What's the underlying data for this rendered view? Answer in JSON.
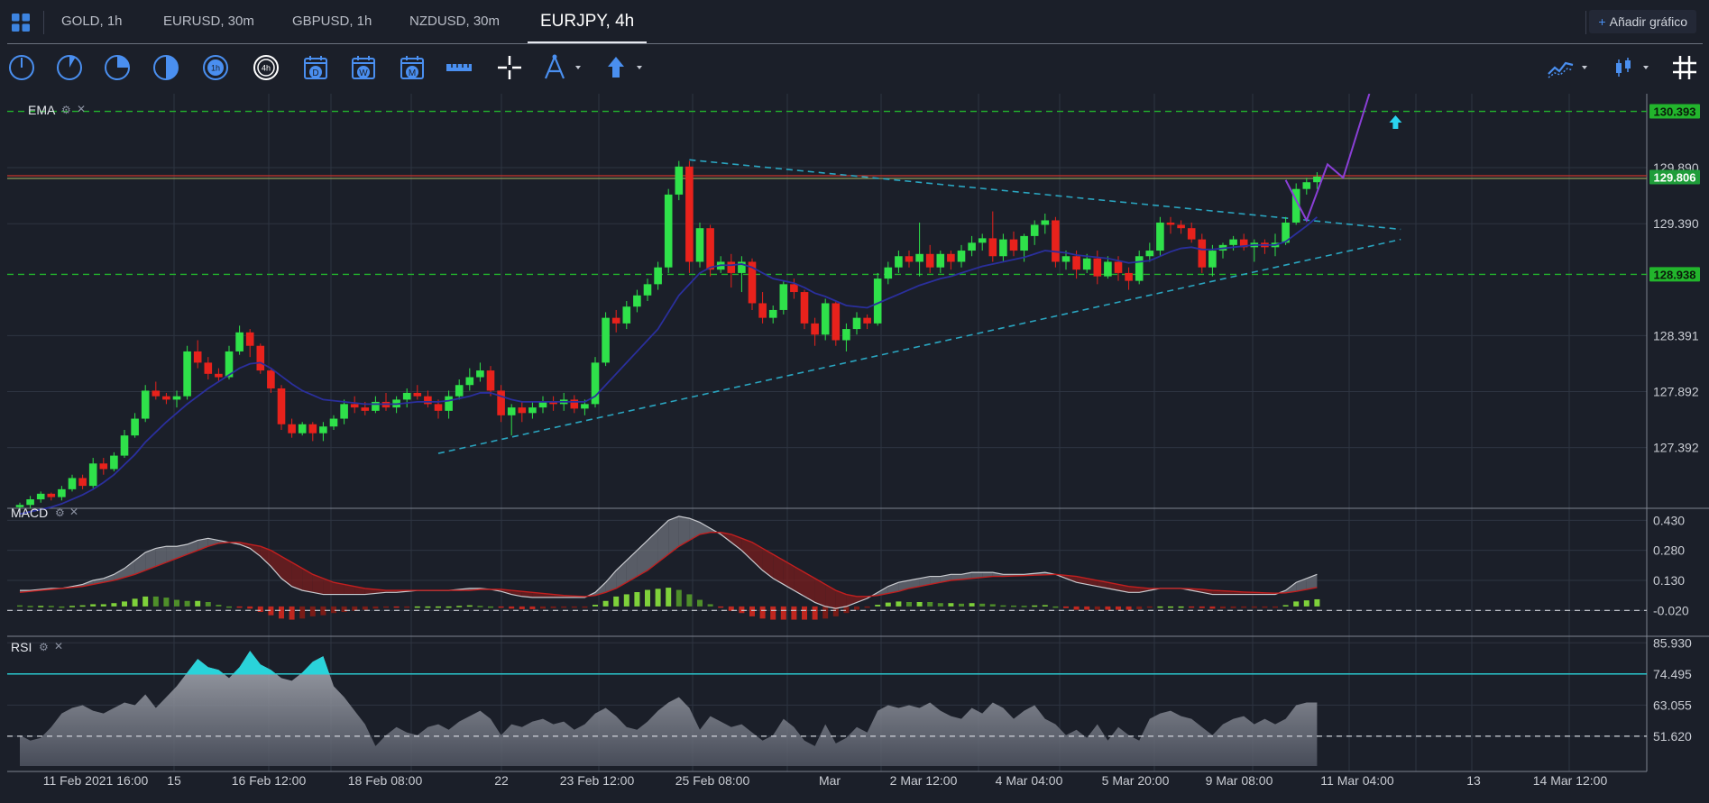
{
  "tabs": [
    {
      "label": "GOLD, 1h",
      "active": false
    },
    {
      "label": "EURUSD, 30m",
      "active": false
    },
    {
      "label": "GBPUSD, 1h",
      "active": false
    },
    {
      "label": "NZDUSD, 30m",
      "active": false
    },
    {
      "label": "EURJPY, 4h",
      "active": true
    }
  ],
  "add_chart_label": "Añadir gráfico",
  "toolbar": {
    "timeframes": [
      "1m-clock-icon",
      "5m-clock-icon",
      "15m-clock-icon",
      "30m-clock-icon",
      "1h-clock-icon",
      "4h-clock-icon",
      "daily-calendar-icon",
      "weekly-calendar-icon",
      "monthly-calendar-icon"
    ],
    "timeframe_selected": "4h",
    "timeframe_letters": [
      "D",
      "W",
      "M"
    ],
    "tools": [
      "ruler-icon",
      "crosshair-icon",
      "drawing-tools-icon",
      "arrow-up-icon"
    ],
    "right_tools": [
      "indicators-icon",
      "chart-type-icon",
      "grid-icon"
    ]
  },
  "panes": {
    "price": {
      "indicator": "EMA",
      "ylabels": [
        "129.890",
        "129.390",
        "128.391",
        "127.892",
        "127.392"
      ],
      "hlines": [
        "130.393",
        "128.938"
      ],
      "last_price": "129.806"
    },
    "macd": {
      "indicator": "MACD",
      "ylabels": [
        "0.430",
        "0.280",
        "0.130",
        "-0.020"
      ]
    },
    "rsi": {
      "indicator": "RSI",
      "ylabels": [
        "85.930",
        "74.495",
        "63.055",
        "51.620"
      ]
    }
  },
  "xaxis": [
    "11 Feb 2021 16:00",
    "15",
    "16 Feb 12:00",
    "18 Feb 08:00",
    "22",
    "23 Feb 12:00",
    "25 Feb 08:00",
    "Mar",
    "2 Mar 12:00",
    "4 Mar 04:00",
    "5 Mar 20:00",
    "9 Mar 08:00",
    "11 Mar 04:00",
    "13",
    "14 Mar 12:00"
  ],
  "colors": {
    "bull": "#2fe14a",
    "bear": "#e8221c",
    "ema": "#2a2f9c",
    "hline": "#22b52c",
    "trend": "#2aa5c0",
    "projection": "#8a3fd6",
    "rsi_fill": "#2ad3da",
    "macd_line": "#c9cbd0",
    "signal_line": "#c21f1f"
  },
  "chart_data": {
    "type": "candlestick",
    "symbol": "EURJPY",
    "timeframe": "4h",
    "ohlc": [
      [
        126.86,
        126.9,
        126.82,
        126.88
      ],
      [
        126.88,
        126.96,
        126.85,
        126.93
      ],
      [
        126.93,
        127.0,
        126.9,
        126.98
      ],
      [
        126.98,
        126.99,
        126.92,
        126.95
      ],
      [
        126.95,
        127.05,
        126.92,
        127.02
      ],
      [
        127.02,
        127.15,
        127.0,
        127.12
      ],
      [
        127.12,
        127.15,
        127.02,
        127.05
      ],
      [
        127.05,
        127.3,
        127.03,
        127.25
      ],
      [
        127.25,
        127.3,
        127.15,
        127.2
      ],
      [
        127.2,
        127.35,
        127.18,
        127.32
      ],
      [
        127.32,
        127.55,
        127.3,
        127.5
      ],
      [
        127.5,
        127.7,
        127.48,
        127.65
      ],
      [
        127.65,
        127.95,
        127.62,
        127.9
      ],
      [
        127.9,
        127.98,
        127.82,
        127.85
      ],
      [
        127.85,
        127.88,
        127.78,
        127.82
      ],
      [
        127.82,
        127.9,
        127.75,
        127.85
      ],
      [
        127.85,
        128.3,
        127.82,
        128.25
      ],
      [
        128.25,
        128.35,
        128.1,
        128.15
      ],
      [
        128.15,
        128.2,
        128.0,
        128.05
      ],
      [
        128.05,
        128.1,
        127.98,
        128.02
      ],
      [
        128.02,
        128.3,
        128.0,
        128.25
      ],
      [
        128.25,
        128.48,
        128.22,
        128.42
      ],
      [
        128.42,
        128.45,
        128.2,
        128.3
      ],
      [
        128.3,
        128.32,
        128.05,
        128.08
      ],
      [
        128.08,
        128.1,
        127.88,
        127.92
      ],
      [
        127.92,
        127.95,
        127.55,
        127.6
      ],
      [
        127.6,
        127.65,
        127.48,
        127.52
      ],
      [
        127.52,
        127.62,
        127.5,
        127.6
      ],
      [
        127.6,
        127.62,
        127.45,
        127.52
      ],
      [
        127.52,
        127.62,
        127.45,
        127.58
      ],
      [
        127.58,
        127.68,
        127.55,
        127.65
      ],
      [
        127.65,
        127.82,
        127.6,
        127.78
      ],
      [
        127.78,
        127.85,
        127.7,
        127.75
      ],
      [
        127.75,
        127.8,
        127.68,
        127.72
      ],
      [
        127.72,
        127.85,
        127.7,
        127.8
      ],
      [
        127.8,
        127.88,
        127.72,
        127.75
      ],
      [
        127.75,
        127.85,
        127.7,
        127.82
      ],
      [
        127.82,
        127.92,
        127.75,
        127.88
      ],
      [
        127.88,
        127.95,
        127.82,
        127.85
      ],
      [
        127.85,
        127.9,
        127.75,
        127.78
      ],
      [
        127.78,
        127.82,
        127.65,
        127.72
      ],
      [
        127.72,
        127.9,
        127.65,
        127.85
      ],
      [
        127.85,
        128.0,
        127.82,
        127.95
      ],
      [
        127.95,
        128.1,
        127.9,
        128.02
      ],
      [
        128.02,
        128.15,
        127.98,
        128.08
      ],
      [
        128.08,
        128.12,
        127.85,
        127.9
      ],
      [
        127.9,
        127.95,
        127.62,
        127.68
      ],
      [
        127.68,
        127.78,
        127.5,
        127.75
      ],
      [
        127.75,
        127.8,
        127.62,
        127.7
      ],
      [
        127.7,
        127.8,
        127.65,
        127.75
      ],
      [
        127.75,
        127.85,
        127.7,
        127.8
      ],
      [
        127.8,
        127.85,
        127.72,
        127.78
      ],
      [
        127.78,
        127.88,
        127.72,
        127.82
      ],
      [
        127.82,
        127.86,
        127.7,
        127.74
      ],
      [
        127.74,
        127.82,
        127.68,
        127.78
      ],
      [
        127.78,
        128.2,
        127.75,
        128.15
      ],
      [
        128.15,
        128.6,
        128.12,
        128.55
      ],
      [
        128.55,
        128.62,
        128.42,
        128.5
      ],
      [
        128.5,
        128.7,
        128.45,
        128.65
      ],
      [
        128.65,
        128.8,
        128.6,
        128.75
      ],
      [
        128.75,
        128.9,
        128.7,
        128.85
      ],
      [
        128.85,
        129.05,
        128.8,
        129.0
      ],
      [
        129.0,
        129.7,
        128.95,
        129.65
      ],
      [
        129.65,
        129.95,
        129.6,
        129.9
      ],
      [
        129.9,
        129.95,
        128.95,
        129.05
      ],
      [
        129.05,
        129.4,
        129.0,
        129.35
      ],
      [
        129.35,
        129.38,
        128.92,
        128.98
      ],
      [
        128.98,
        129.1,
        128.95,
        129.05
      ],
      [
        129.05,
        129.12,
        128.82,
        128.95
      ],
      [
        128.95,
        129.1,
        128.78,
        129.05
      ],
      [
        129.05,
        129.08,
        128.62,
        128.68
      ],
      [
        128.68,
        128.78,
        128.5,
        128.55
      ],
      [
        128.55,
        128.66,
        128.5,
        128.62
      ],
      [
        128.62,
        128.88,
        128.58,
        128.85
      ],
      [
        128.85,
        128.9,
        128.72,
        128.78
      ],
      [
        128.78,
        128.8,
        128.45,
        128.5
      ],
      [
        128.5,
        128.55,
        128.3,
        128.4
      ],
      [
        128.4,
        128.72,
        128.35,
        128.68
      ],
      [
        128.68,
        128.7,
        128.3,
        128.35
      ],
      [
        128.35,
        128.5,
        128.25,
        128.45
      ],
      [
        128.45,
        128.6,
        128.4,
        128.55
      ],
      [
        128.55,
        128.58,
        128.45,
        128.5
      ],
      [
        128.5,
        128.95,
        128.48,
        128.9
      ],
      [
        128.9,
        129.05,
        128.85,
        129.0
      ],
      [
        129.0,
        129.15,
        128.95,
        129.1
      ],
      [
        129.1,
        129.15,
        129.0,
        129.05
      ],
      [
        129.05,
        129.4,
        128.92,
        129.12
      ],
      [
        129.12,
        129.2,
        128.95,
        129.0
      ],
      [
        129.0,
        129.15,
        128.95,
        129.12
      ],
      [
        129.12,
        129.15,
        128.98,
        129.05
      ],
      [
        129.05,
        129.2,
        129.0,
        129.15
      ],
      [
        129.15,
        129.28,
        129.1,
        129.22
      ],
      [
        129.22,
        129.3,
        129.15,
        129.26
      ],
      [
        129.26,
        129.5,
        129.05,
        129.1
      ],
      [
        129.1,
        129.3,
        129.05,
        129.25
      ],
      [
        129.25,
        129.32,
        129.1,
        129.15
      ],
      [
        129.15,
        129.3,
        129.05,
        129.28
      ],
      [
        129.28,
        129.42,
        129.2,
        129.38
      ],
      [
        129.38,
        129.48,
        129.3,
        129.42
      ],
      [
        129.42,
        129.45,
        129.0,
        129.05
      ],
      [
        129.05,
        129.15,
        128.98,
        129.1
      ],
      [
        129.1,
        129.15,
        128.9,
        128.98
      ],
      [
        128.98,
        129.12,
        128.95,
        129.08
      ],
      [
        129.08,
        129.15,
        128.85,
        128.92
      ],
      [
        128.92,
        129.1,
        128.9,
        129.05
      ],
      [
        129.05,
        129.1,
        128.88,
        128.95
      ],
      [
        128.95,
        129.0,
        128.8,
        128.88
      ],
      [
        128.88,
        129.15,
        128.85,
        129.1
      ],
      [
        129.1,
        129.22,
        129.05,
        129.15
      ],
      [
        129.15,
        129.45,
        129.1,
        129.4
      ],
      [
        129.4,
        129.45,
        129.3,
        129.38
      ],
      [
        129.38,
        129.42,
        129.3,
        129.35
      ],
      [
        129.35,
        129.4,
        129.22,
        129.25
      ],
      [
        129.25,
        129.3,
        128.95,
        129.0
      ],
      [
        129.0,
        129.2,
        128.92,
        129.15
      ],
      [
        129.15,
        129.22,
        129.08,
        129.2
      ],
      [
        129.2,
        129.28,
        129.15,
        129.25
      ],
      [
        129.25,
        129.3,
        129.15,
        129.18
      ],
      [
        129.18,
        129.25,
        129.05,
        129.22
      ],
      [
        129.22,
        129.25,
        129.12,
        129.18
      ],
      [
        129.18,
        129.3,
        129.1,
        129.22
      ],
      [
        129.22,
        129.45,
        129.2,
        129.4
      ],
      [
        129.4,
        129.75,
        129.38,
        129.7
      ],
      [
        129.7,
        129.8,
        129.65,
        129.76
      ],
      [
        129.76,
        129.85,
        129.7,
        129.81
      ]
    ],
    "ema": [
      126.8,
      126.82,
      126.84,
      126.86,
      126.89,
      126.93,
      126.97,
      127.02,
      127.08,
      127.15,
      127.24,
      127.33,
      127.44,
      127.53,
      127.62,
      127.7,
      127.78,
      127.85,
      127.92,
      127.98,
      128.04,
      128.1,
      128.14,
      128.15,
      128.1,
      128.03,
      127.96,
      127.9,
      127.86,
      127.82,
      127.81,
      127.8,
      127.79,
      127.78,
      127.78,
      127.78,
      127.78,
      127.79,
      127.8,
      127.8,
      127.8,
      127.81,
      127.83,
      127.85,
      127.88,
      127.88,
      127.85,
      127.82,
      127.8,
      127.8,
      127.8,
      127.8,
      127.8,
      127.8,
      127.8,
      127.85,
      127.95,
      128.05,
      128.15,
      128.25,
      128.35,
      128.45,
      128.6,
      128.75,
      128.85,
      128.95,
      129.0,
      129.02,
      129.02,
      129.03,
      129.0,
      128.95,
      128.9,
      128.88,
      128.86,
      128.82,
      128.77,
      128.74,
      128.7,
      128.66,
      128.65,
      128.64,
      128.68,
      128.72,
      128.76,
      128.8,
      128.84,
      128.87,
      128.9,
      128.92,
      128.95,
      128.98,
      129.01,
      129.03,
      129.05,
      129.07,
      129.09,
      129.12,
      129.15,
      129.14,
      129.13,
      129.11,
      129.1,
      129.09,
      129.08,
      129.06,
      129.04,
      129.05,
      129.06,
      129.1,
      129.14,
      129.17,
      129.18,
      129.16,
      129.16,
      129.17,
      129.18,
      129.19,
      129.2,
      129.2,
      129.2,
      129.23,
      129.3,
      129.37,
      129.45
    ],
    "macd_line": [
      0.08,
      0.08,
      0.085,
      0.09,
      0.09,
      0.1,
      0.11,
      0.13,
      0.14,
      0.16,
      0.19,
      0.23,
      0.27,
      0.29,
      0.3,
      0.3,
      0.31,
      0.33,
      0.34,
      0.33,
      0.32,
      0.31,
      0.29,
      0.25,
      0.2,
      0.14,
      0.1,
      0.08,
      0.07,
      0.06,
      0.06,
      0.06,
      0.06,
      0.06,
      0.065,
      0.07,
      0.07,
      0.075,
      0.08,
      0.08,
      0.08,
      0.08,
      0.085,
      0.09,
      0.09,
      0.085,
      0.075,
      0.06,
      0.05,
      0.045,
      0.045,
      0.045,
      0.045,
      0.045,
      0.045,
      0.07,
      0.12,
      0.18,
      0.23,
      0.28,
      0.33,
      0.38,
      0.43,
      0.45,
      0.44,
      0.42,
      0.39,
      0.36,
      0.32,
      0.28,
      0.23,
      0.18,
      0.14,
      0.11,
      0.08,
      0.05,
      0.02,
      0.0,
      -0.01,
      0.0,
      0.02,
      0.04,
      0.07,
      0.1,
      0.12,
      0.13,
      0.14,
      0.15,
      0.15,
      0.16,
      0.16,
      0.17,
      0.17,
      0.17,
      0.16,
      0.16,
      0.16,
      0.165,
      0.17,
      0.16,
      0.14,
      0.12,
      0.11,
      0.1,
      0.09,
      0.08,
      0.07,
      0.07,
      0.08,
      0.09,
      0.09,
      0.09,
      0.08,
      0.07,
      0.06,
      0.06,
      0.06,
      0.06,
      0.06,
      0.06,
      0.06,
      0.08,
      0.12,
      0.14,
      0.16
    ],
    "macd_signal": [
      0.07,
      0.075,
      0.08,
      0.085,
      0.09,
      0.095,
      0.1,
      0.11,
      0.12,
      0.13,
      0.145,
      0.16,
      0.18,
      0.2,
      0.22,
      0.24,
      0.26,
      0.28,
      0.3,
      0.315,
      0.32,
      0.32,
      0.31,
      0.3,
      0.28,
      0.25,
      0.22,
      0.19,
      0.16,
      0.14,
      0.12,
      0.11,
      0.1,
      0.09,
      0.085,
      0.08,
      0.08,
      0.08,
      0.08,
      0.08,
      0.08,
      0.08,
      0.08,
      0.08,
      0.085,
      0.085,
      0.085,
      0.08,
      0.075,
      0.07,
      0.065,
      0.06,
      0.055,
      0.052,
      0.05,
      0.055,
      0.07,
      0.09,
      0.12,
      0.15,
      0.18,
      0.22,
      0.26,
      0.3,
      0.33,
      0.36,
      0.37,
      0.37,
      0.36,
      0.34,
      0.32,
      0.29,
      0.26,
      0.23,
      0.2,
      0.17,
      0.14,
      0.11,
      0.08,
      0.06,
      0.05,
      0.05,
      0.055,
      0.065,
      0.075,
      0.09,
      0.1,
      0.11,
      0.12,
      0.13,
      0.135,
      0.14,
      0.145,
      0.15,
      0.15,
      0.152,
      0.154,
      0.156,
      0.158,
      0.16,
      0.155,
      0.15,
      0.14,
      0.13,
      0.12,
      0.11,
      0.1,
      0.095,
      0.09,
      0.09,
      0.09,
      0.09,
      0.088,
      0.085,
      0.08,
      0.078,
      0.075,
      0.072,
      0.07,
      0.068,
      0.066,
      0.068,
      0.075,
      0.085,
      0.095
    ],
    "rsi": [
      52,
      50,
      51,
      55,
      60,
      62,
      63,
      61,
      60,
      62,
      64,
      63,
      67,
      62,
      66,
      70,
      75,
      80,
      77,
      76,
      73,
      77,
      83,
      78,
      76,
      73,
      72,
      75,
      79,
      81,
      70,
      66,
      61,
      56,
      48,
      52,
      55,
      53,
      52,
      55,
      56,
      54,
      57,
      59,
      61,
      58,
      52,
      56,
      55,
      57,
      58,
      56,
      57,
      54,
      56,
      60,
      62,
      59,
      55,
      54,
      57,
      61,
      64,
      66,
      62,
      54,
      59,
      57,
      55,
      56,
      53,
      50,
      52,
      58,
      55,
      50,
      48,
      56,
      49,
      51,
      55,
      53,
      61,
      63,
      62,
      63,
      62,
      64,
      61,
      59,
      58,
      62,
      60,
      64,
      62,
      58,
      61,
      63,
      58,
      56,
      52,
      54,
      51,
      56,
      50,
      55,
      52,
      50,
      58,
      60,
      61,
      59,
      58,
      55,
      52,
      56,
      58,
      59,
      56,
      58,
      56,
      58,
      63,
      64,
      64
    ],
    "price_axis": {
      "ylabels": [
        129.89,
        129.39,
        128.391,
        127.892,
        127.392
      ],
      "ylim": [
        126.85,
        130.55
      ]
    },
    "horizontal_levels": [
      130.393,
      128.938
    ],
    "last_price": 129.806,
    "macd_axis": {
      "ylabels": [
        0.43,
        0.28,
        0.13,
        -0.02
      ],
      "ylim": [
        -0.14,
        0.49
      ]
    },
    "rsi_axis": {
      "ylabels": [
        85.93,
        74.495,
        63.055,
        51.62
      ],
      "ylim": [
        40,
        88
      ],
      "overbought": 74.495,
      "midline": 51.62
    },
    "x_ticks": [
      "11 Feb 2021 16:00",
      "15",
      "16 Feb 12:00",
      "18 Feb 08:00",
      "22",
      "23 Feb 12:00",
      "25 Feb 08:00",
      "Mar",
      "2 Mar 12:00",
      "4 Mar 04:00",
      "5 Mar 20:00",
      "9 Mar 08:00",
      "11 Mar 04:00",
      "13",
      "14 Mar 12:00"
    ],
    "trendlines": [
      {
        "name": "upper",
        "from": [
          64,
          129.96
        ],
        "to": [
          132,
          129.34
        ],
        "style": "dashed"
      },
      {
        "name": "lower",
        "from": [
          40,
          127.34
        ],
        "to": [
          132,
          129.25
        ],
        "style": "dashed"
      }
    ],
    "projection": [
      [
        121,
        129.78
      ],
      [
        123,
        129.42
      ],
      [
        125,
        129.92
      ],
      [
        126.5,
        129.8
      ],
      [
        129,
        130.55
      ]
    ],
    "grid": true
  }
}
